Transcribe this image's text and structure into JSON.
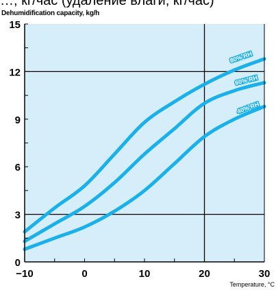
{
  "header_text": "…, кг/час (удаление влаги, кг/час)",
  "colors": {
    "plot_background": "#d6eef9",
    "curve": "#1ab0ea",
    "grid": "#000000"
  },
  "chart_data": {
    "type": "line",
    "ylabel": "Dehumidification capacity, kg/h",
    "xlabel": "Temperature, °C",
    "xlim": [
      -10,
      30
    ],
    "ylim": [
      0,
      15
    ],
    "x_ticks": [
      "−10",
      "0",
      "10",
      "20",
      "30"
    ],
    "y_ticks": [
      "0",
      "3",
      "6",
      "9",
      "12",
      "15"
    ],
    "grid": "partial: vertical line at x=20, horizontal lines at y=3 and y=12",
    "legend": "inline labels at right end of curves",
    "series": [
      {
        "name": "80% RH",
        "x": [
          -10,
          -5,
          0,
          5,
          10,
          15,
          20,
          25,
          30
        ],
        "y": [
          1.9,
          3.4,
          4.8,
          6.8,
          8.8,
          10.1,
          11.2,
          12.1,
          12.8
        ]
      },
      {
        "name": "60% RH",
        "x": [
          -10,
          -5,
          0,
          5,
          10,
          15,
          20,
          25,
          30
        ],
        "y": [
          1.3,
          2.4,
          3.5,
          5.0,
          6.8,
          8.4,
          10.0,
          10.8,
          11.3
        ]
      },
      {
        "name": "40% RH",
        "x": [
          -10,
          -5,
          0,
          5,
          10,
          15,
          20,
          25,
          30
        ],
        "y": [
          0.8,
          1.5,
          2.2,
          3.2,
          4.5,
          6.2,
          7.9,
          9.0,
          9.8
        ]
      }
    ]
  }
}
